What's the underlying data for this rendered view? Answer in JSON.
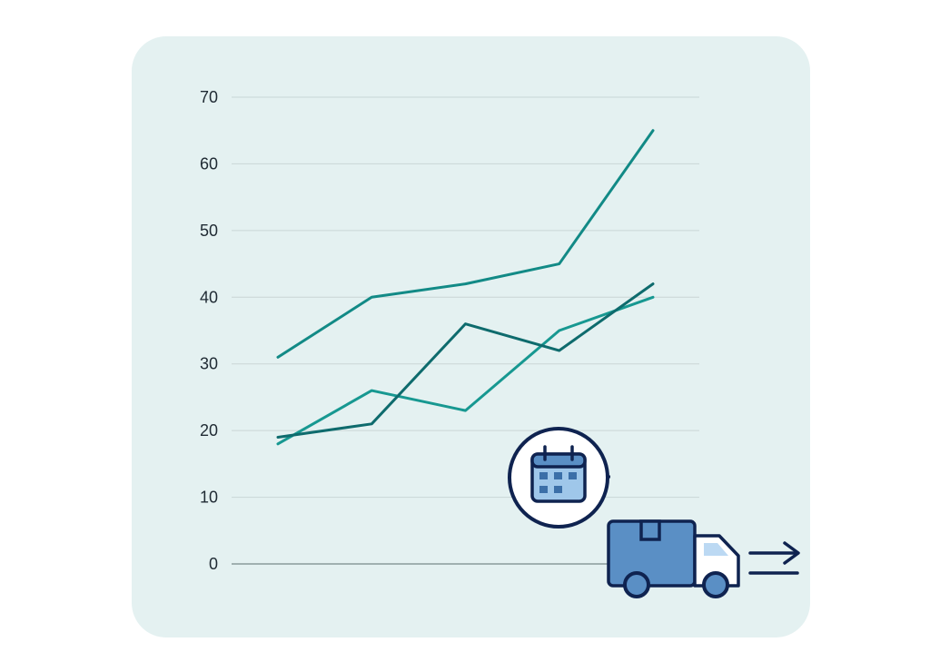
{
  "chart_data": {
    "type": "line",
    "x": [
      1,
      2,
      3,
      4,
      5
    ],
    "series": [
      {
        "values": [
          31,
          40,
          42,
          45,
          65
        ],
        "color": "#128a86"
      },
      {
        "values": [
          18,
          26,
          23,
          35,
          40
        ],
        "color": "#179891"
      },
      {
        "values": [
          19,
          21,
          36,
          32,
          42
        ],
        "color": "#0e6b6d"
      }
    ],
    "ylim": [
      0,
      70
    ],
    "yticks": [
      "0",
      "10",
      "20",
      "30",
      "40",
      "50",
      "60",
      "70"
    ],
    "grid": true,
    "title": "",
    "xlabel": "",
    "ylabel": ""
  },
  "decorations": {
    "calendar_icon": "calendar-icon",
    "truck_icon": "delivery-truck-icon",
    "arrow_icon": "fast-arrow-icon",
    "colors": {
      "card_background": "#e4f1f1",
      "icon_fill": "#5a8fc5",
      "icon_outline": "#0f2350"
    }
  }
}
